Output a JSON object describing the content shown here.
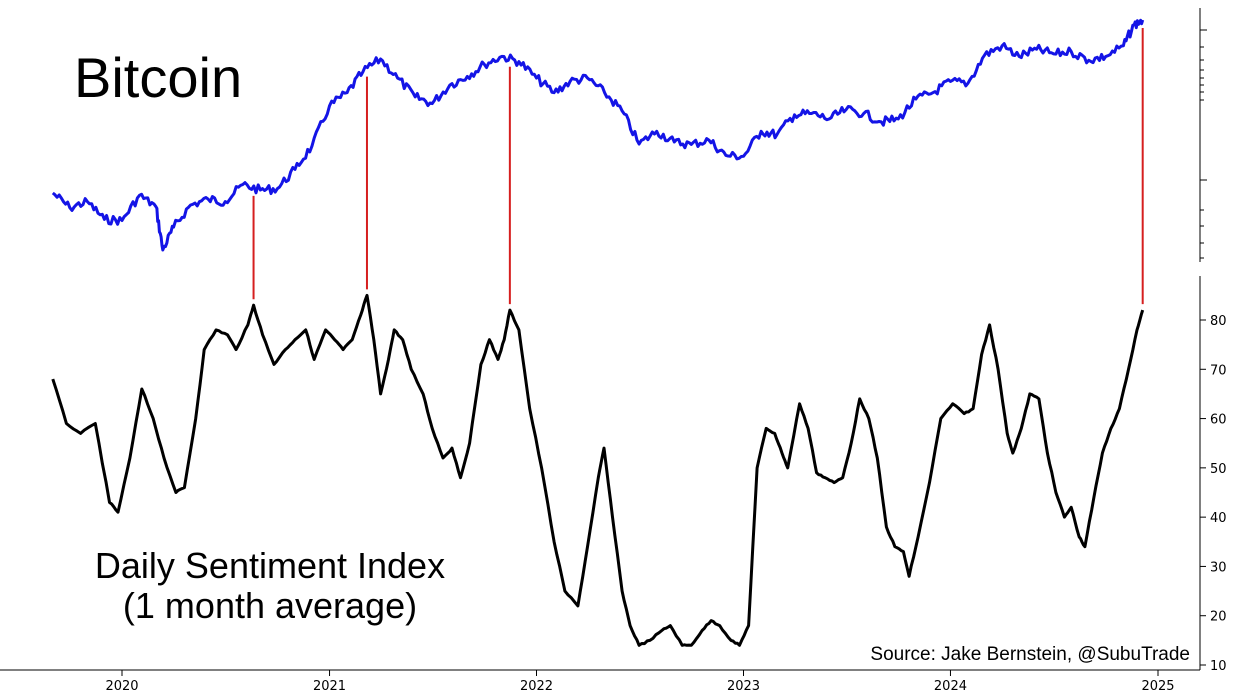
{
  "chart_data": [
    {
      "type": "line",
      "panel": "top",
      "title": "Bitcoin",
      "y_scale": "log",
      "y_tick_labels": [],
      "series": [
        {
          "color": "#1414e6",
          "points": [
            [
              "2019-09-01",
              10300
            ],
            [
              "2019-10-01",
              8500
            ],
            [
              "2019-11-01",
              9200
            ],
            [
              "2019-12-01",
              7300
            ],
            [
              "2020-01-01",
              7200
            ],
            [
              "2020-02-01",
              10000
            ],
            [
              "2020-03-01",
              8600
            ],
            [
              "2020-03-13",
              4900
            ],
            [
              "2020-04-01",
              6600
            ],
            [
              "2020-05-01",
              8800
            ],
            [
              "2020-06-01",
              9500
            ],
            [
              "2020-07-01",
              9200
            ],
            [
              "2020-08-01",
              11500
            ],
            [
              "2020-09-01",
              10700
            ],
            [
              "2020-10-01",
              10900
            ],
            [
              "2020-11-01",
              14000
            ],
            [
              "2020-12-01",
              19000
            ],
            [
              "2021-01-01",
              32000
            ],
            [
              "2021-02-01",
              38000
            ],
            [
              "2021-03-01",
              50000
            ],
            [
              "2021-04-01",
              59000
            ],
            [
              "2021-05-01",
              46000
            ],
            [
              "2021-06-01",
              36000
            ],
            [
              "2021-07-01",
              33000
            ],
            [
              "2021-08-01",
              42000
            ],
            [
              "2021-09-01",
              47000
            ],
            [
              "2021-10-01",
              55000
            ],
            [
              "2021-11-01",
              61000
            ],
            [
              "2021-12-01",
              57000
            ],
            [
              "2022-01-01",
              46000
            ],
            [
              "2022-02-01",
              38000
            ],
            [
              "2022-03-01",
              44000
            ],
            [
              "2022-04-01",
              46000
            ],
            [
              "2022-05-01",
              38000
            ],
            [
              "2022-06-01",
              30000
            ],
            [
              "2022-07-01",
              19500
            ],
            [
              "2022-08-01",
              23000
            ],
            [
              "2022-09-01",
              20000
            ],
            [
              "2022-10-01",
              19400
            ],
            [
              "2022-11-01",
              20500
            ],
            [
              "2022-12-01",
              16800
            ],
            [
              "2023-01-01",
              16600
            ],
            [
              "2023-02-01",
              23000
            ],
            [
              "2023-03-01",
              22000
            ],
            [
              "2023-04-01",
              28500
            ],
            [
              "2023-05-01",
              29000
            ],
            [
              "2023-06-01",
              27000
            ],
            [
              "2023-07-01",
              30500
            ],
            [
              "2023-08-01",
              29000
            ],
            [
              "2023-09-01",
              26000
            ],
            [
              "2023-10-01",
              27000
            ],
            [
              "2023-11-01",
              35000
            ],
            [
              "2023-12-01",
              38000
            ],
            [
              "2024-01-01",
              44000
            ],
            [
              "2024-02-01",
              43000
            ],
            [
              "2024-03-01",
              62000
            ],
            [
              "2024-04-01",
              70000
            ],
            [
              "2024-05-01",
              61000
            ],
            [
              "2024-06-01",
              67000
            ],
            [
              "2024-07-01",
              63000
            ],
            [
              "2024-08-01",
              65000
            ],
            [
              "2024-09-01",
              58000
            ],
            [
              "2024-10-01",
              61000
            ],
            [
              "2024-11-01",
              70000
            ],
            [
              "2024-11-20",
              92000
            ],
            [
              "2024-12-05",
              98000
            ]
          ]
        }
      ]
    },
    {
      "type": "line",
      "panel": "bottom",
      "title": "Daily Sentiment Index",
      "subtitle": "(1 month average)",
      "ylim": [
        10,
        88
      ],
      "yticks": [
        10,
        20,
        30,
        40,
        50,
        60,
        70,
        80
      ],
      "xlim": [
        "2019-07-15",
        "2025-03-01"
      ],
      "xticks": [
        "2020-01-01",
        "2021-01-01",
        "2022-01-01",
        "2023-01-01",
        "2024-01-01",
        "2025-01-01"
      ],
      "xtick_labels": [
        "2020",
        "2021",
        "2022",
        "2023",
        "2024",
        "2025"
      ],
      "series": [
        {
          "color": "#000000",
          "points": [
            [
              "2019-09-01",
              68
            ],
            [
              "2019-09-25",
              59
            ],
            [
              "2019-10-20",
              57
            ],
            [
              "2019-11-15",
              59
            ],
            [
              "2019-12-10",
              43
            ],
            [
              "2019-12-25",
              41
            ],
            [
              "2020-01-15",
              52
            ],
            [
              "2020-02-05",
              66
            ],
            [
              "2020-02-25",
              60
            ],
            [
              "2020-03-15",
              52
            ],
            [
              "2020-04-05",
              45
            ],
            [
              "2020-04-20",
              46
            ],
            [
              "2020-05-10",
              60
            ],
            [
              "2020-05-25",
              74
            ],
            [
              "2020-06-15",
              78
            ],
            [
              "2020-07-05",
              77
            ],
            [
              "2020-07-20",
              74
            ],
            [
              "2020-08-10",
              79
            ],
            [
              "2020-08-20",
              83
            ],
            [
              "2020-09-05",
              77
            ],
            [
              "2020-09-25",
              71
            ],
            [
              "2020-10-15",
              74
            ],
            [
              "2020-11-01",
              76
            ],
            [
              "2020-11-20",
              78
            ],
            [
              "2020-12-05",
              72
            ],
            [
              "2020-12-25",
              78
            ],
            [
              "2021-01-10",
              76
            ],
            [
              "2021-01-25",
              74
            ],
            [
              "2021-02-10",
              76
            ],
            [
              "2021-02-25",
              81
            ],
            [
              "2021-03-08",
              85
            ],
            [
              "2021-03-20",
              76
            ],
            [
              "2021-04-01",
              65
            ],
            [
              "2021-04-15",
              72
            ],
            [
              "2021-04-25",
              78
            ],
            [
              "2021-05-10",
              76
            ],
            [
              "2021-05-25",
              70
            ],
            [
              "2021-06-15",
              65
            ],
            [
              "2021-07-01",
              58
            ],
            [
              "2021-07-20",
              52
            ],
            [
              "2021-08-05",
              54
            ],
            [
              "2021-08-20",
              48
            ],
            [
              "2021-09-05",
              55
            ],
            [
              "2021-09-25",
              71
            ],
            [
              "2021-10-10",
              76
            ],
            [
              "2021-10-25",
              72
            ],
            [
              "2021-11-05",
              76
            ],
            [
              "2021-11-15",
              82
            ],
            [
              "2021-12-01",
              78
            ],
            [
              "2021-12-20",
              62
            ],
            [
              "2022-01-10",
              50
            ],
            [
              "2022-02-01",
              35
            ],
            [
              "2022-02-20",
              25
            ],
            [
              "2022-03-15",
              22
            ],
            [
              "2022-04-01",
              34
            ],
            [
              "2022-04-20",
              48
            ],
            [
              "2022-04-30",
              54
            ],
            [
              "2022-05-15",
              40
            ],
            [
              "2022-06-01",
              25
            ],
            [
              "2022-06-15",
              18
            ],
            [
              "2022-07-01",
              14
            ],
            [
              "2022-07-20",
              15
            ],
            [
              "2022-08-10",
              17
            ],
            [
              "2022-08-25",
              18
            ],
            [
              "2022-09-15",
              14
            ],
            [
              "2022-10-01",
              14
            ],
            [
              "2022-10-20",
              17
            ],
            [
              "2022-11-05",
              19
            ],
            [
              "2022-11-20",
              18
            ],
            [
              "2022-12-10",
              15
            ],
            [
              "2022-12-25",
              14
            ],
            [
              "2023-01-10",
              18
            ],
            [
              "2023-01-25",
              50
            ],
            [
              "2023-02-10",
              58
            ],
            [
              "2023-02-25",
              57
            ],
            [
              "2023-03-10",
              53
            ],
            [
              "2023-03-20",
              50
            ],
            [
              "2023-04-10",
              63
            ],
            [
              "2023-04-25",
              58
            ],
            [
              "2023-05-10",
              49
            ],
            [
              "2023-05-25",
              48
            ],
            [
              "2023-06-10",
              47
            ],
            [
              "2023-06-25",
              48
            ],
            [
              "2023-07-10",
              55
            ],
            [
              "2023-07-25",
              64
            ],
            [
              "2023-08-10",
              60
            ],
            [
              "2023-08-25",
              52
            ],
            [
              "2023-09-10",
              38
            ],
            [
              "2023-09-25",
              34
            ],
            [
              "2023-10-10",
              33
            ],
            [
              "2023-10-20",
              28
            ],
            [
              "2023-11-05",
              36
            ],
            [
              "2023-11-25",
              47
            ],
            [
              "2023-12-15",
              60
            ],
            [
              "2024-01-05",
              63
            ],
            [
              "2024-01-25",
              61
            ],
            [
              "2024-02-10",
              62
            ],
            [
              "2024-02-25",
              73
            ],
            [
              "2024-03-10",
              79
            ],
            [
              "2024-03-25",
              70
            ],
            [
              "2024-04-10",
              57
            ],
            [
              "2024-04-20",
              53
            ],
            [
              "2024-05-05",
              58
            ],
            [
              "2024-05-20",
              65
            ],
            [
              "2024-06-05",
              64
            ],
            [
              "2024-06-20",
              53
            ],
            [
              "2024-07-05",
              45
            ],
            [
              "2024-07-20",
              40
            ],
            [
              "2024-08-01",
              42
            ],
            [
              "2024-08-15",
              36
            ],
            [
              "2024-08-25",
              34
            ],
            [
              "2024-09-10",
              44
            ],
            [
              "2024-09-25",
              53
            ],
            [
              "2024-10-10",
              58
            ],
            [
              "2024-10-25",
              62
            ],
            [
              "2024-11-10",
              70
            ],
            [
              "2024-11-25",
              78
            ],
            [
              "2024-12-05",
              82
            ]
          ]
        }
      ],
      "markers": {
        "color": "#d61f1f",
        "dates": [
          "2020-08-20",
          "2021-03-08",
          "2021-11-15",
          "2024-12-05"
        ]
      }
    }
  ],
  "texts": {
    "top_title": "Bitcoin",
    "bottom_title_line1": "Daily Sentiment Index",
    "bottom_title_line2": "(1 month average)",
    "source": "Source: Jake Bernstein, @SubuTrade"
  }
}
